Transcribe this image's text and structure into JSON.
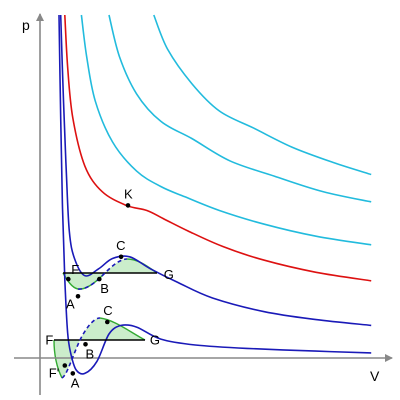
{
  "chart_data": {
    "type": "line",
    "title": "",
    "xlabel": "V",
    "ylabel": "p",
    "xlim": [
      0,
      10
    ],
    "ylim": [
      0,
      10
    ],
    "grid": false,
    "legend": "none",
    "colors": {
      "subcritical": "#1a1ab8",
      "critical": "#dd1111",
      "supercritical": "#22bbdd",
      "tie_line": "#000000",
      "spinodal_dashed": "#1a1ab8",
      "fill": "#c8ecc8",
      "fill_edge": "#33aa33"
    },
    "series": [
      {
        "kind": "subcritical",
        "points": [
          [
            0.55,
            10
          ],
          [
            0.6,
            7
          ],
          [
            0.65,
            4.5
          ],
          [
            0.72,
            2.3
          ],
          [
            0.8,
            0.75
          ],
          [
            0.9,
            0.1
          ],
          [
            1.05,
            -0.35
          ],
          [
            1.3,
            -0.45
          ],
          [
            1.65,
            -0.1
          ],
          [
            2.0,
            0.7
          ],
          [
            2.35,
            0.95
          ],
          [
            2.8,
            0.9
          ],
          [
            3.5,
            0.55
          ],
          [
            4.5,
            0.38
          ],
          [
            6,
            0.28
          ],
          [
            8,
            0.2
          ],
          [
            9.6,
            0.15
          ]
        ]
      },
      {
        "kind": "subcritical",
        "points": [
          [
            0.6,
            10
          ],
          [
            0.68,
            7.5
          ],
          [
            0.76,
            5.5
          ],
          [
            0.85,
            3.7
          ],
          [
            1.0,
            2.9
          ],
          [
            1.3,
            2.4
          ],
          [
            1.7,
            2.6
          ],
          [
            2.1,
            2.9
          ],
          [
            2.6,
            2.95
          ],
          [
            3.2,
            2.6
          ],
          [
            4,
            2.2
          ],
          [
            5,
            1.75
          ],
          [
            6.5,
            1.35
          ],
          [
            8,
            1.12
          ],
          [
            9.6,
            0.95
          ]
        ]
      },
      {
        "kind": "critical",
        "points": [
          [
            0.72,
            10
          ],
          [
            0.8,
            8.5
          ],
          [
            0.95,
            7
          ],
          [
            1.3,
            5.6
          ],
          [
            1.8,
            4.85
          ],
          [
            2.5,
            4.45
          ],
          [
            3.1,
            4.3
          ],
          [
            3.6,
            4.05
          ],
          [
            4.3,
            3.7
          ],
          [
            5.3,
            3.25
          ],
          [
            6.5,
            2.85
          ],
          [
            8,
            2.5
          ],
          [
            9.6,
            2.25
          ]
        ]
      },
      {
        "kind": "supercritical",
        "points": [
          [
            1.2,
            10
          ],
          [
            1.35,
            8.8
          ],
          [
            1.6,
            7.5
          ],
          [
            2.1,
            6.3
          ],
          [
            2.8,
            5.45
          ],
          [
            3.5,
            5.0
          ],
          [
            4.2,
            4.7
          ],
          [
            5.2,
            4.3
          ],
          [
            6.5,
            3.9
          ],
          [
            8,
            3.55
          ],
          [
            9.6,
            3.3
          ]
        ]
      },
      {
        "kind": "supercritical",
        "points": [
          [
            2.0,
            10
          ],
          [
            2.3,
            8.8
          ],
          [
            2.8,
            7.7
          ],
          [
            3.5,
            6.9
          ],
          [
            4.4,
            6.4
          ],
          [
            5.5,
            5.75
          ],
          [
            6.8,
            5.3
          ],
          [
            8.2,
            4.85
          ],
          [
            9.6,
            4.55
          ]
        ]
      },
      {
        "kind": "supercritical",
        "points": [
          [
            3.3,
            10
          ],
          [
            3.7,
            9.0
          ],
          [
            4.4,
            8.0
          ],
          [
            5.2,
            7.2
          ],
          [
            6.2,
            6.7
          ],
          [
            7.3,
            6.15
          ],
          [
            8.5,
            5.7
          ],
          [
            9.6,
            5.35
          ]
        ]
      }
    ],
    "tie_lines": [
      {
        "from": [
          0.72,
          2.3
        ],
        "to": [
          3.5,
          2.3
        ]
      },
      {
        "from": [
          0.72,
          0.4
        ],
        "to": [
          3.1,
          0.4
        ]
      }
    ],
    "dashed_segments": [
      {
        "points": [
          [
            1.3,
            2.4
          ],
          [
            1.7,
            2.6
          ],
          [
            2.1,
            2.9
          ],
          [
            2.6,
            2.95
          ]
        ]
      },
      {
        "points": [
          [
            1.3,
            -0.45
          ],
          [
            1.65,
            -0.1
          ],
          [
            2.0,
            0.7
          ],
          [
            2.35,
            0.95
          ]
        ]
      }
    ],
    "point_labels": [
      {
        "text": "K",
        "x": 2.55,
        "y": 4.45,
        "dot": true,
        "dx": -4,
        "dy": -7
      },
      {
        "text": "F",
        "x": 0.82,
        "y": 2.3,
        "dot": true,
        "dx": 3,
        "dy": -5
      },
      {
        "text": "G",
        "x": 3.5,
        "y": 2.3,
        "dot": false,
        "dx": 3,
        "dy": 0
      },
      {
        "text": "B",
        "x": 1.72,
        "y": 2.3,
        "dot": true,
        "dx": 1,
        "dy": 14
      },
      {
        "text": "C",
        "x": 2.35,
        "y": 2.95,
        "dot": true,
        "dx": -5,
        "dy": -7
      },
      {
        "text": "A",
        "x": 1.1,
        "y": 1.8,
        "dot": true,
        "dx": -12,
        "dy": 12
      },
      {
        "text": "F",
        "x": 0.62,
        "y": 0.4,
        "dot": false,
        "dx": -16,
        "dy": 0
      },
      {
        "text": "G",
        "x": 3.1,
        "y": 0.4,
        "dot": false,
        "dx": 3,
        "dy": 0
      },
      {
        "text": "B",
        "x": 1.32,
        "y": 0.4,
        "dot": true,
        "dx": 0,
        "dy": 14
      },
      {
        "text": "C",
        "x": 1.95,
        "y": 1.05,
        "dot": true,
        "dx": -4,
        "dy": -7
      },
      {
        "text": "F'",
        "x": 0.72,
        "y": -0.22,
        "dot": true,
        "dx": -16,
        "dy": 12
      },
      {
        "text": "A",
        "x": 0.95,
        "y": -0.45,
        "dot": true,
        "dx": -2,
        "dy": 14
      }
    ]
  }
}
